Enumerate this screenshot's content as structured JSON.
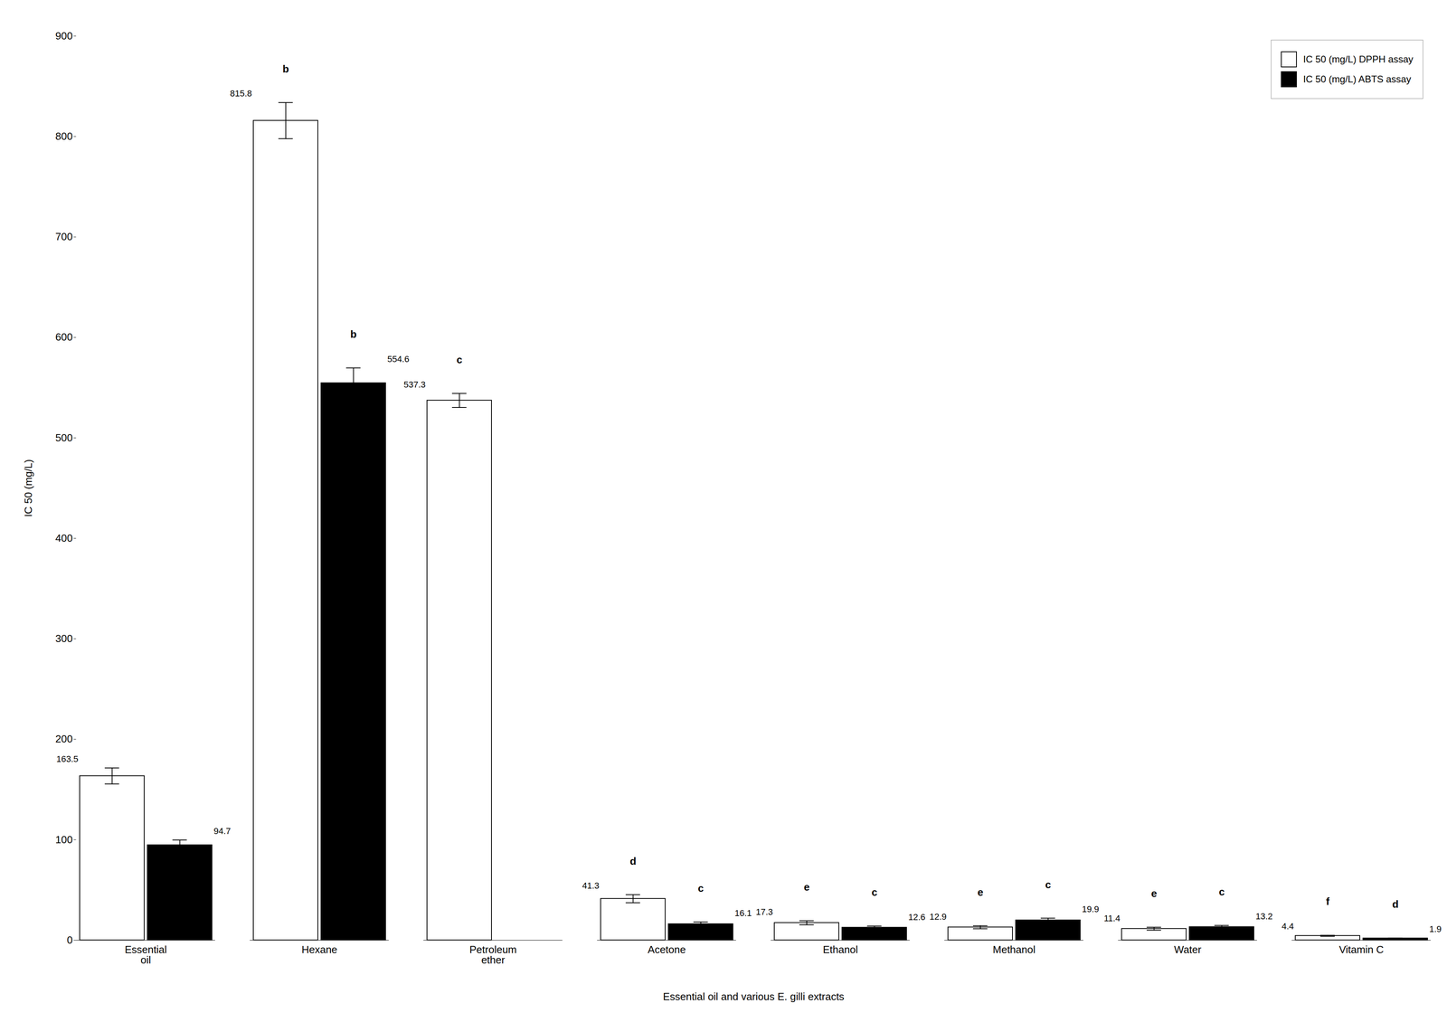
{
  "chart_data": {
    "type": "bar",
    "categories": [
      "Essential\noil",
      "Hexane",
      "Petroleum\nether",
      "Acetone",
      "Ethanol",
      "Methanol",
      "Water",
      "Vitamin C"
    ],
    "series": [
      {
        "name": "IC 50 (mg/L) DPPH assay",
        "color": "white",
        "values": [
          163.5,
          815.8,
          537.3,
          41.3,
          17.3,
          12.9,
          11.4,
          4.4
        ],
        "errors": [
          8,
          18,
          7,
          4,
          2,
          1.5,
          1.5,
          0.5
        ],
        "letters": [
          null,
          "b",
          "c",
          "d",
          "e",
          "e",
          "e",
          "f"
        ]
      },
      {
        "name": "IC 50 (mg/L) ABTS assay",
        "color": "black",
        "values": [
          94.7,
          554.6,
          null,
          16.1,
          12.6,
          19.9,
          13.2,
          1.9
        ],
        "errors": [
          5,
          15,
          null,
          2,
          1.5,
          2,
          1.5,
          0.3
        ],
        "letters": [
          null,
          "b",
          null,
          "c",
          "c",
          "c",
          "c",
          "d"
        ]
      }
    ],
    "xlabel": "Essential oil and various E. gilli extracts",
    "ylabel": "IC 50 (mg/L)",
    "ylim": [
      0,
      900
    ],
    "yticks": [
      0,
      100,
      200,
      300,
      400,
      500,
      600,
      700,
      800,
      900
    ],
    "grid": false,
    "legend": "upper right",
    "data_labels": true
  }
}
